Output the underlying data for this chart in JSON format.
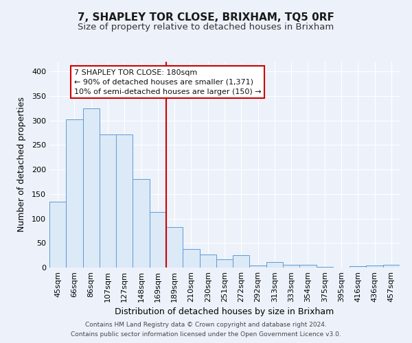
{
  "title": "7, SHAPLEY TOR CLOSE, BRIXHAM, TQ5 0RF",
  "subtitle": "Size of property relative to detached houses in Brixham",
  "xlabel": "Distribution of detached houses by size in Brixham",
  "ylabel": "Number of detached properties",
  "footnote1": "Contains HM Land Registry data © Crown copyright and database right 2024.",
  "footnote2": "Contains public sector information licensed under the Open Government Licence v3.0.",
  "categories": [
    "45sqm",
    "66sqm",
    "86sqm",
    "107sqm",
    "127sqm",
    "148sqm",
    "169sqm",
    "189sqm",
    "210sqm",
    "230sqm",
    "251sqm",
    "272sqm",
    "292sqm",
    "313sqm",
    "333sqm",
    "354sqm",
    "375sqm",
    "395sqm",
    "416sqm",
    "436sqm",
    "457sqm"
  ],
  "values": [
    134,
    303,
    325,
    271,
    271,
    181,
    113,
    83,
    38,
    27,
    17,
    25,
    4,
    11,
    5,
    6,
    1,
    0,
    3,
    4,
    5
  ],
  "bar_color_fill": "#dce9f7",
  "bar_color_edge": "#5b9bd5",
  "vline_color": "#cc0000",
  "vline_index": 7,
  "annotation_text": "7 SHAPLEY TOR CLOSE: 180sqm\n← 90% of detached houses are smaller (1,371)\n10% of semi-detached houses are larger (150) →",
  "annotation_box_color": "#ffffff",
  "annotation_box_edge": "#cc0000",
  "ylim": [
    0,
    420
  ],
  "yticks": [
    0,
    50,
    100,
    150,
    200,
    250,
    300,
    350,
    400
  ],
  "bg_color": "#edf2fa",
  "grid_color": "#ffffff",
  "title_fontsize": 11,
  "subtitle_fontsize": 9.5,
  "xlabel_fontsize": 9,
  "ylabel_fontsize": 9,
  "tick_fontsize": 8,
  "annotation_fontsize": 8,
  "footnote_fontsize": 6.5
}
